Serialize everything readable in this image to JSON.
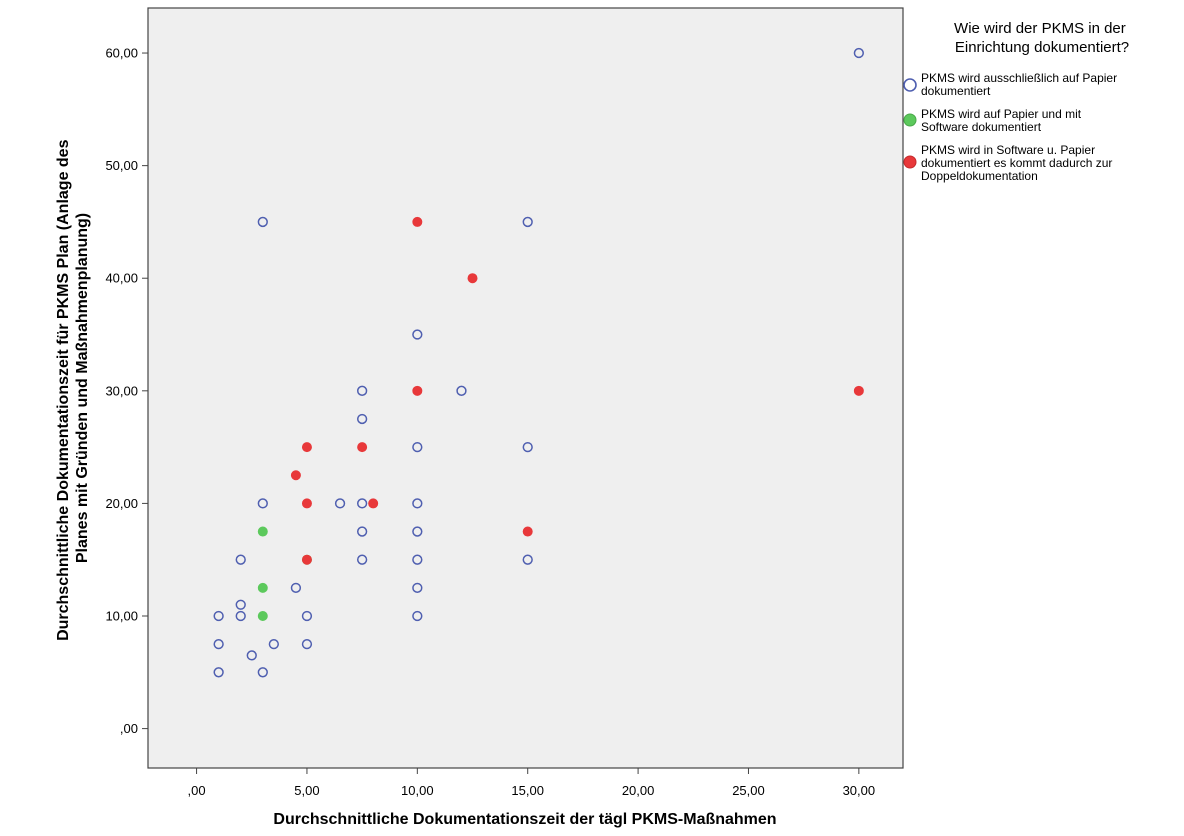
{
  "chart_data": {
    "type": "scatter",
    "title": "",
    "xlabel": "Durchschnittliche Dokumentationszeit der tägl PKMS-Maßnahmen",
    "ylabel_lines": [
      "Durchschnittliche Dokumentationszeit für PKMS Plan (Anlage des",
      "Planes mit Gründen und Maßnahmenplanung)"
    ],
    "xlim": [
      -2.2,
      32
    ],
    "ylim": [
      -3.5,
      64
    ],
    "x_ticks": [
      0,
      5,
      10,
      15,
      20,
      25,
      30
    ],
    "x_tick_labels": [
      ",00",
      "5,00",
      "10,00",
      "15,00",
      "20,00",
      "25,00",
      "30,00"
    ],
    "y_ticks": [
      0,
      10,
      20,
      30,
      40,
      50,
      60
    ],
    "y_tick_labels": [
      ",00",
      "10,00",
      "20,00",
      "30,00",
      "40,00",
      "50,00",
      "60,00"
    ],
    "grid": false,
    "legend": {
      "title_lines": [
        "Wie wird der PKMS in der",
        "Einrichtung dokumentiert?"
      ],
      "placement": "right"
    },
    "series": [
      {
        "name_lines": [
          "PKMS wird ausschließlich auf Papier",
          "dokumentiert"
        ],
        "marker": "open-circle",
        "color": "#4f5fb0",
        "points": [
          [
            30,
            60
          ],
          [
            3,
            45
          ],
          [
            15,
            45
          ],
          [
            10,
            35
          ],
          [
            7.5,
            30
          ],
          [
            12,
            30
          ],
          [
            7.5,
            27.5
          ],
          [
            10,
            25
          ],
          [
            15,
            25
          ],
          [
            3,
            20
          ],
          [
            6.5,
            20
          ],
          [
            7.5,
            20
          ],
          [
            10,
            20
          ],
          [
            7.5,
            17.5
          ],
          [
            10,
            17.5
          ],
          [
            2,
            15
          ],
          [
            7.5,
            15
          ],
          [
            10,
            15
          ],
          [
            15,
            15
          ],
          [
            4.5,
            12.5
          ],
          [
            10,
            12.5
          ],
          [
            2,
            11
          ],
          [
            1,
            10
          ],
          [
            2,
            10
          ],
          [
            5,
            10
          ],
          [
            10,
            10
          ],
          [
            1,
            7.5
          ],
          [
            3.5,
            7.5
          ],
          [
            5,
            7.5
          ],
          [
            2.5,
            6.5
          ],
          [
            1,
            5
          ],
          [
            3,
            5
          ]
        ]
      },
      {
        "name_lines": [
          "PKMS wird auf Papier und mit",
          "Software dokumentiert"
        ],
        "marker": "filled-circle",
        "color": "#5cc95c",
        "points": [
          [
            3,
            17.5
          ],
          [
            5,
            15
          ],
          [
            3,
            12.5
          ],
          [
            3,
            10
          ]
        ]
      },
      {
        "name_lines": [
          "PKMS wird in Software u. Papier",
          "dokumentiert es kommt dadurch zur",
          "Doppeldokumentation"
        ],
        "marker": "filled-circle",
        "color": "#e8383a",
        "points": [
          [
            10,
            45
          ],
          [
            12.5,
            40
          ],
          [
            10,
            30
          ],
          [
            30,
            30
          ],
          [
            5,
            25
          ],
          [
            7.5,
            25
          ],
          [
            4.5,
            22.5
          ],
          [
            5,
            20
          ],
          [
            8,
            20
          ],
          [
            15,
            17.5
          ],
          [
            5,
            15
          ]
        ]
      }
    ]
  }
}
